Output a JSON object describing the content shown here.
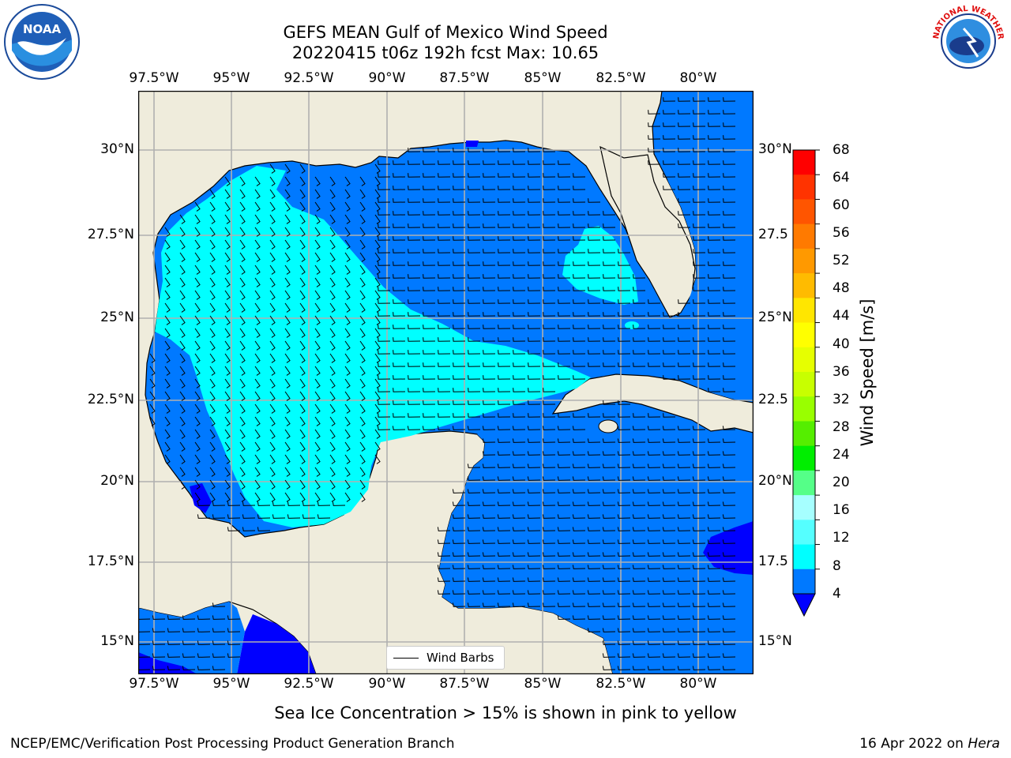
{
  "title": {
    "line1": "GEFS MEAN Gulf of Mexico Wind Speed",
    "line2": "20220415 t06z 192h fcst   Max: 10.65"
  },
  "logos": {
    "left": {
      "icon": "noaa-logo",
      "text": "NOAA"
    },
    "right": {
      "icon": "nws-logo",
      "text": "NATIONAL WEATHER SERVICE"
    }
  },
  "map": {
    "lon_ticks": [
      "97.5°W",
      "95°W",
      "92.5°W",
      "90°W",
      "87.5°W",
      "85°W",
      "82.5°W",
      "80°W"
    ],
    "lat_ticks_left": [
      "30°N",
      "27.5°N",
      "25°N",
      "22.5°N",
      "20°N",
      "17.5°N",
      "15°N"
    ],
    "lat_ticks_right": [
      "30°N",
      "27.5",
      "25°N",
      "22.5",
      "20°N",
      "17.5",
      "15°N"
    ],
    "colors": {
      "land": "#efecdc",
      "wind_4_8": "#0079ff",
      "wind_8_12": "#00ffff",
      "wind_lt_4": "#0000ff",
      "grid": "#b0b0b0",
      "coast": "#000000"
    },
    "legend_label": "Wind Barbs"
  },
  "colorbar": {
    "levels": [
      "68",
      "64",
      "60",
      "56",
      "52",
      "48",
      "44",
      "40",
      "36",
      "32",
      "28",
      "24",
      "20",
      "16",
      "12",
      "8",
      "4"
    ],
    "colors": [
      "#ff0000",
      "#ff3300",
      "#ff5500",
      "#ff7a00",
      "#ff9900",
      "#ffbb00",
      "#ffe600",
      "#ffff00",
      "#e6ff00",
      "#c8ff00",
      "#99ff00",
      "#55ee00",
      "#00ee00",
      "#55ff88",
      "#a6ffff",
      "#55ffff",
      "#00ffff",
      "#0079ff"
    ],
    "extend_color": "#0000ff",
    "label": "Wind Speed [m/s]"
  },
  "footer": {
    "note": "Sea Ice Concentration > 15% is shown in pink to yellow",
    "left": "NCEP/EMC/Verification Post Processing Product Generation Branch",
    "right_date": "16 Apr 2022 on ",
    "right_machine": "Hera"
  }
}
